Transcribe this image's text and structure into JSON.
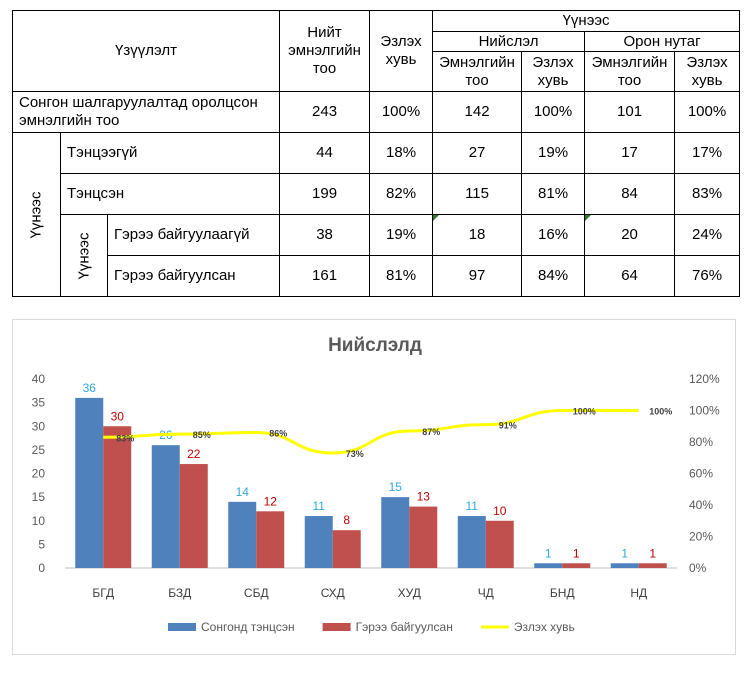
{
  "table": {
    "header_main": "Үзүүлэлт",
    "header_total": "Нийт эмнэлгийн тоо",
    "header_share": "Эзлэх хувь",
    "header_location": "Үүнээс",
    "header_capital": "Нийслэл",
    "header_rural": "Орон нутаг",
    "sub_count": "Эмнэлгийн тоо",
    "sub_share": "Эзлэх хувь",
    "group1_label": "Үүнээс",
    "group2_label": "Үүнээс",
    "rows": [
      {
        "label": "Сонгон шалгаруулалтад оролцсон эмнэлгийн тоо",
        "total": "243",
        "share": "100%",
        "cap_count": "142",
        "cap_share": "100%",
        "rural_count": "101",
        "rural_share": "100%"
      },
      {
        "label": "Тэнцээгүй",
        "total": "44",
        "share": "18%",
        "cap_count": "27",
        "cap_share": "19%",
        "rural_count": "17",
        "rural_share": "17%"
      },
      {
        "label": "Тэнцсэн",
        "total": "199",
        "share": "82%",
        "cap_count": "115",
        "cap_share": "81%",
        "rural_count": "84",
        "rural_share": "83%"
      },
      {
        "label": "Гэрээ байгуулаагүй",
        "total": "38",
        "share": "19%",
        "cap_count": "18",
        "cap_share": "16%",
        "rural_count": "20",
        "rural_share": "24%"
      },
      {
        "label": "Гэрээ байгуулсан",
        "total": "161",
        "share": "81%",
        "cap_count": "97",
        "cap_share": "84%",
        "rural_count": "64",
        "rural_share": "76%"
      }
    ]
  },
  "chart_data": {
    "type": "bar",
    "title": "Нийслэлд",
    "categories": [
      "БГД",
      "БЗД",
      "СБД",
      "СХД",
      "ХУД",
      "ЧД",
      "БНД",
      "НД"
    ],
    "series": [
      {
        "name": "Сонгонд тэнцсэн",
        "type": "bar",
        "axis": "left",
        "values": [
          36,
          26,
          14,
          11,
          15,
          11,
          1,
          1
        ],
        "color": "#4f81bd",
        "label_color": "#31a8d8"
      },
      {
        "name": "Гэрээ байгуулсан",
        "type": "bar",
        "axis": "left",
        "values": [
          30,
          22,
          12,
          8,
          13,
          10,
          1,
          1
        ],
        "color": "#c0504d",
        "label_color": "#c00000"
      },
      {
        "name": "Эзлэх хувь",
        "type": "line",
        "axis": "right",
        "values": [
          83,
          85,
          86,
          73,
          87,
          91,
          100,
          100
        ],
        "labels": [
          "83%",
          "85%",
          "86%",
          "73%",
          "87%",
          "91%",
          "100%",
          "100%"
        ],
        "color": "#ffff00"
      }
    ],
    "y_left": {
      "min": 0,
      "max": 40,
      "ticks": [
        "0",
        "5",
        "10",
        "15",
        "20",
        "25",
        "30",
        "35",
        "40"
      ]
    },
    "y_right": {
      "min": 0,
      "max": 120,
      "ticks": [
        "0%",
        "20%",
        "40%",
        "60%",
        "80%",
        "100%",
        "120%"
      ]
    },
    "grid": false,
    "legend_position": "bottom"
  }
}
